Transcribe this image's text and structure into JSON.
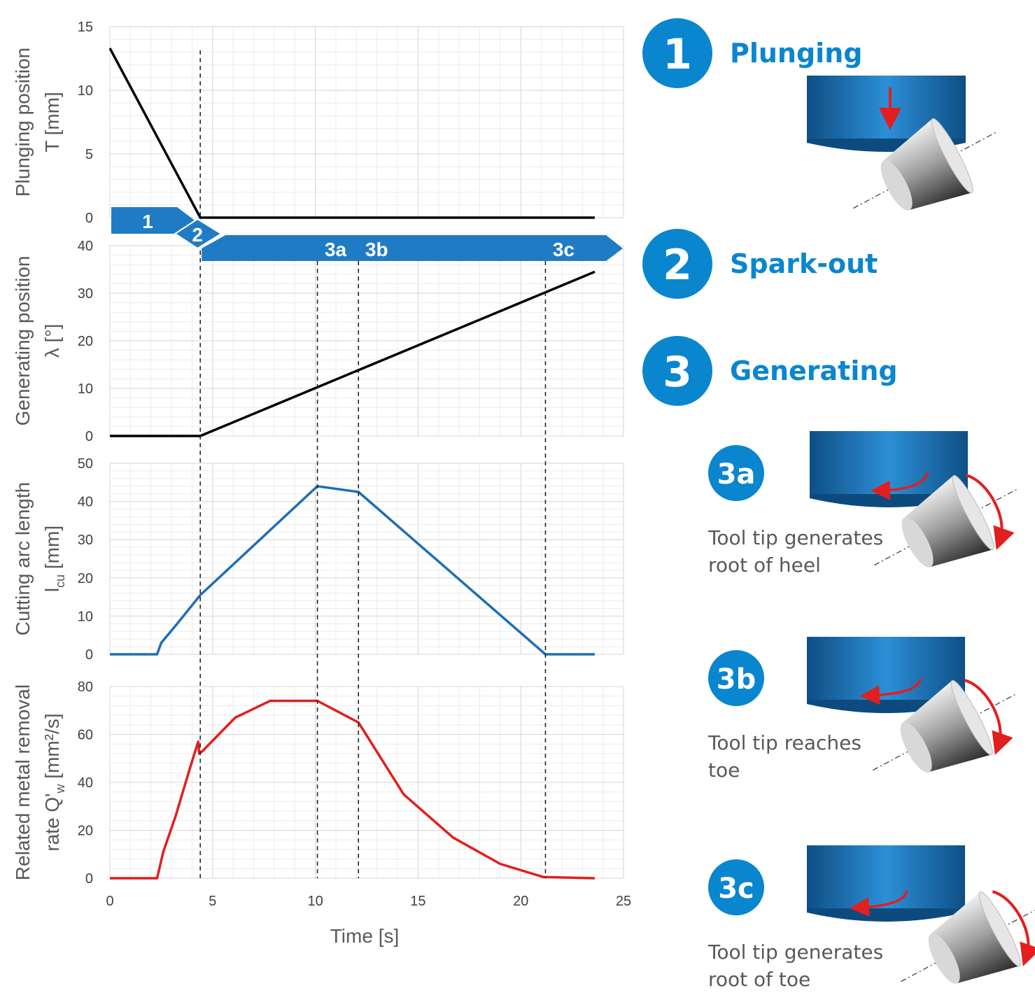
{
  "chart_data": [
    {
      "type": "line",
      "ylabel": [
        "Plunging position",
        "T [mm]"
      ],
      "ylim": [
        0,
        15
      ],
      "yticks": [
        0,
        5,
        10,
        15
      ],
      "xlim": [
        0,
        25
      ],
      "grid": true,
      "series": [
        {
          "color": "#000000",
          "x": [
            0,
            4.4,
            23.6
          ],
          "y": [
            13.3,
            0,
            0
          ]
        }
      ]
    },
    {
      "type": "line",
      "ylabel": [
        "Generating position",
        "λ [°]"
      ],
      "ylim": [
        0,
        40
      ],
      "yticks": [
        0,
        10,
        20,
        30,
        40
      ],
      "xlim": [
        0,
        25
      ],
      "grid": true,
      "series": [
        {
          "color": "#000000",
          "x": [
            0,
            4.4,
            23.6
          ],
          "y": [
            0,
            0,
            34.5
          ]
        }
      ]
    },
    {
      "type": "line",
      "ylabel": [
        "Cutting arc length",
        "l_cu [mm]"
      ],
      "ylim": [
        0,
        50
      ],
      "yticks": [
        0,
        10,
        20,
        30,
        40,
        50
      ],
      "xlim": [
        0,
        25
      ],
      "grid": true,
      "series": [
        {
          "color": "#1f6fb4",
          "x": [
            0,
            2.3,
            2.5,
            3.2,
            4.4,
            10.1,
            12.1,
            21.2,
            23.6
          ],
          "y": [
            0,
            0,
            3,
            7.5,
            15.5,
            44,
            42.5,
            0,
            0
          ]
        }
      ]
    },
    {
      "type": "line",
      "ylabel": [
        "Related metal removal",
        "rate Q'w [mm²/s]"
      ],
      "ylim": [
        0,
        80
      ],
      "yticks": [
        0,
        20,
        40,
        60,
        80
      ],
      "xlim": [
        0,
        25
      ],
      "xticks": [
        0,
        5,
        10,
        15,
        20,
        25
      ],
      "xlabel": "Time [s]",
      "grid": true,
      "series": [
        {
          "color": "#e31e1e",
          "x": [
            0,
            2.3,
            2.6,
            3.2,
            3.9,
            4.3,
            4.35,
            4.5,
            6.1,
            7.8,
            10.1,
            12.1,
            14.3,
            16.7,
            19.0,
            21.1,
            23.6
          ],
          "y": [
            0,
            0,
            11,
            26,
            46,
            57,
            52,
            53,
            67,
            74,
            74,
            65,
            35,
            17,
            6,
            0.5,
            0
          ]
        }
      ]
    }
  ],
  "phase_bar": {
    "color": "#1f7cc4",
    "phases": [
      {
        "label": "1",
        "start": 0,
        "end": 4.4
      },
      {
        "label": "2",
        "start": 4.4
      },
      {
        "label": "3a",
        "at": 10.1
      },
      {
        "label": "3b",
        "at": 12.1
      },
      {
        "label": "3c",
        "at": 21.2
      }
    ],
    "markers": [
      4.4,
      10.1,
      12.1,
      21.2
    ]
  },
  "legend": {
    "badge_color": "#0a86cf",
    "steps": [
      {
        "num": "1",
        "title": "Plunging"
      },
      {
        "num": "2",
        "title": "Spark-out"
      },
      {
        "num": "3",
        "title": "Generating"
      }
    ],
    "substeps": [
      {
        "num": "3a",
        "desc_line1": "Tool tip generates",
        "desc_line2": "root of heel"
      },
      {
        "num": "3b",
        "desc_line1": "Tool tip reaches",
        "desc_line2": "toe"
      },
      {
        "num": "3c",
        "desc_line1": "Tool tip generates",
        "desc_line2": "root of toe"
      }
    ]
  },
  "icons": [
    "gear-plunge-icon",
    "gear-rotate-icon"
  ]
}
